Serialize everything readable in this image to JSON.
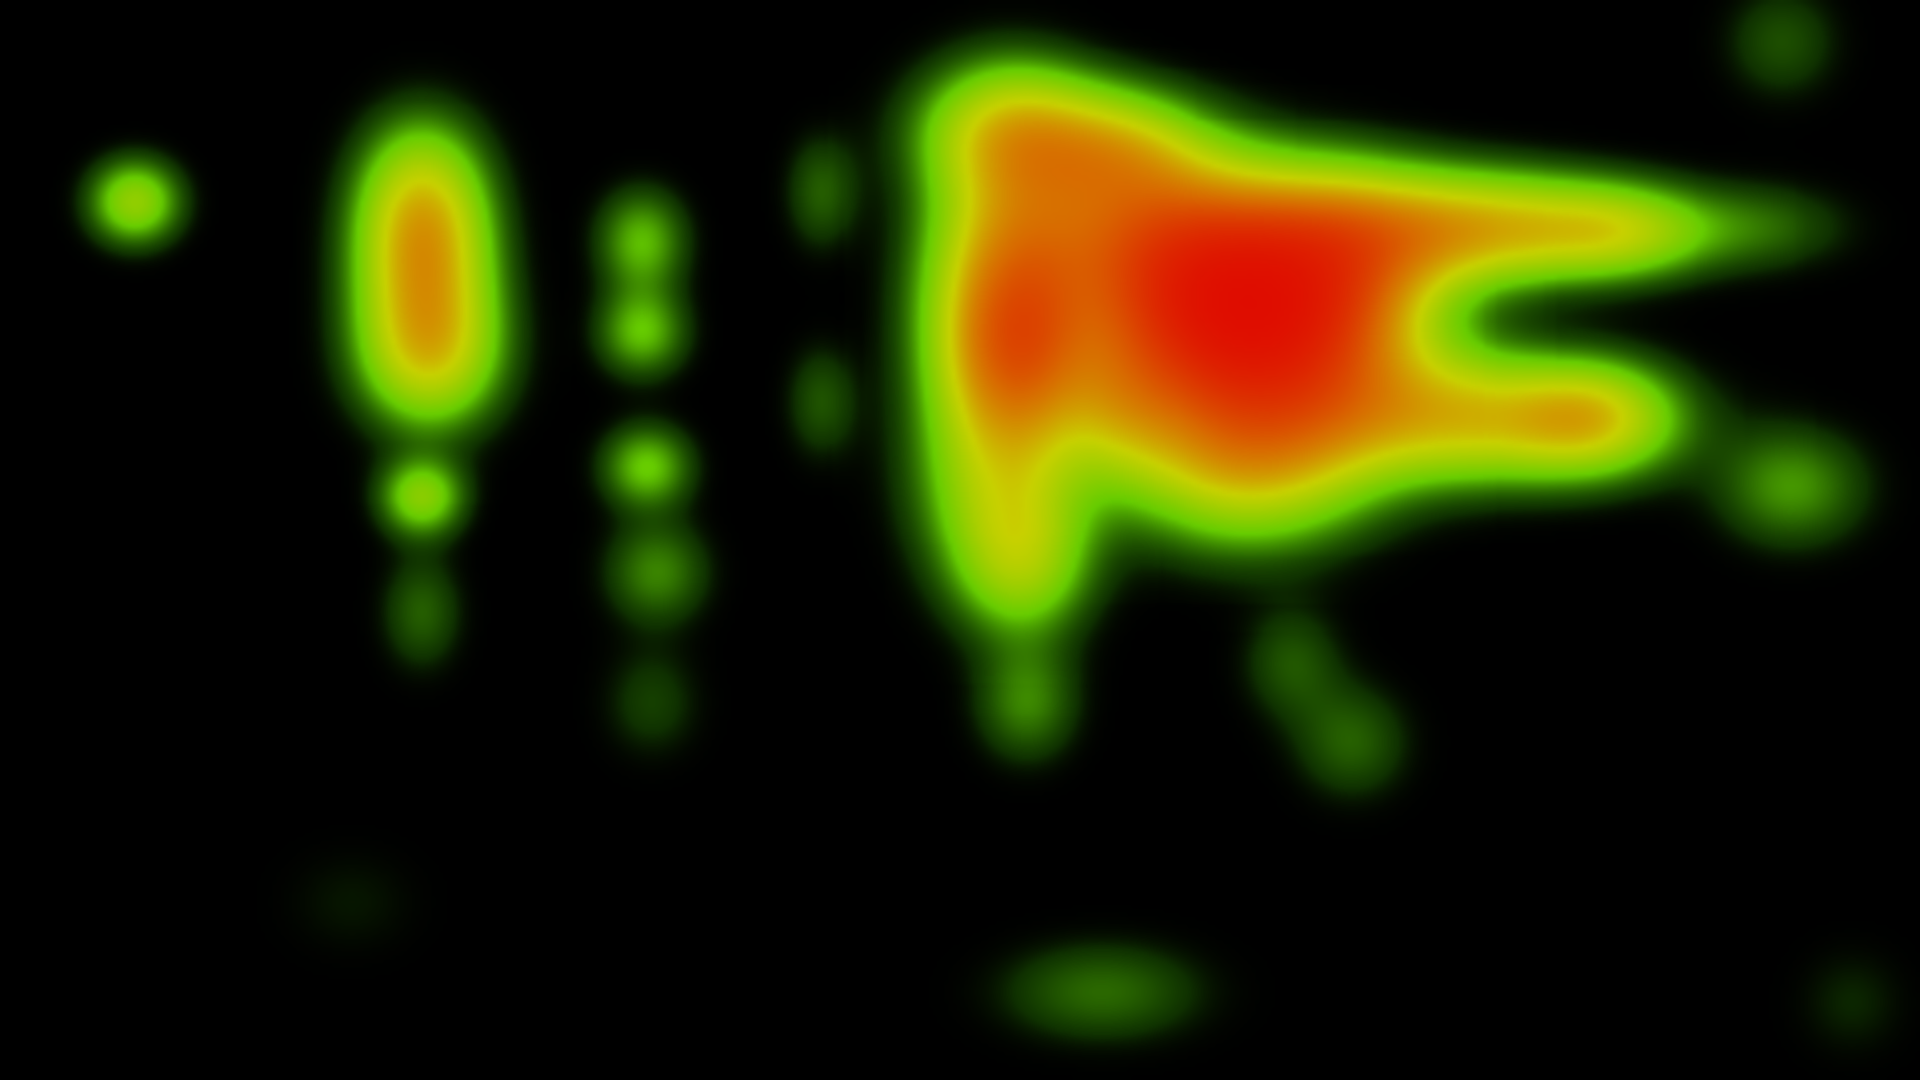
{
  "background_color": "#000000",
  "color_scale": {
    "low": "#2a8a00",
    "mid_low": "#66cc00",
    "mid": "#c8d000",
    "mid_high": "#d86a00",
    "high": "#e00000"
  },
  "heatmap_style": "eye-tracking attention heatmap"
}
